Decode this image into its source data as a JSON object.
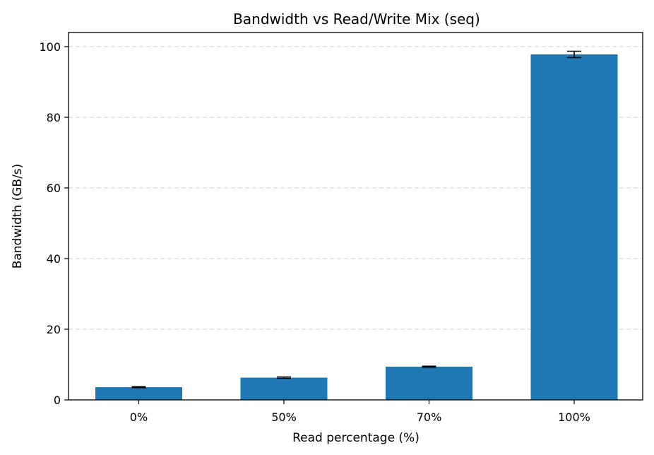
{
  "chart_data": {
    "type": "bar",
    "title": "Bandwidth vs Read/Write Mix (seq)",
    "xlabel": "Read percentage (%)",
    "ylabel": "Bandwidth (GB/s)",
    "categories": [
      "0%",
      "50%",
      "70%",
      "100%"
    ],
    "values": [
      3.6,
      6.3,
      9.4,
      97.8
    ],
    "errors": [
      0.15,
      0.2,
      0.15,
      0.9
    ],
    "ylim": [
      0,
      104
    ],
    "yticks": [
      0,
      20,
      40,
      60,
      80,
      100
    ],
    "grid": "y-dashed",
    "bar_color": "#1f77b4",
    "error_color": "#000000"
  }
}
